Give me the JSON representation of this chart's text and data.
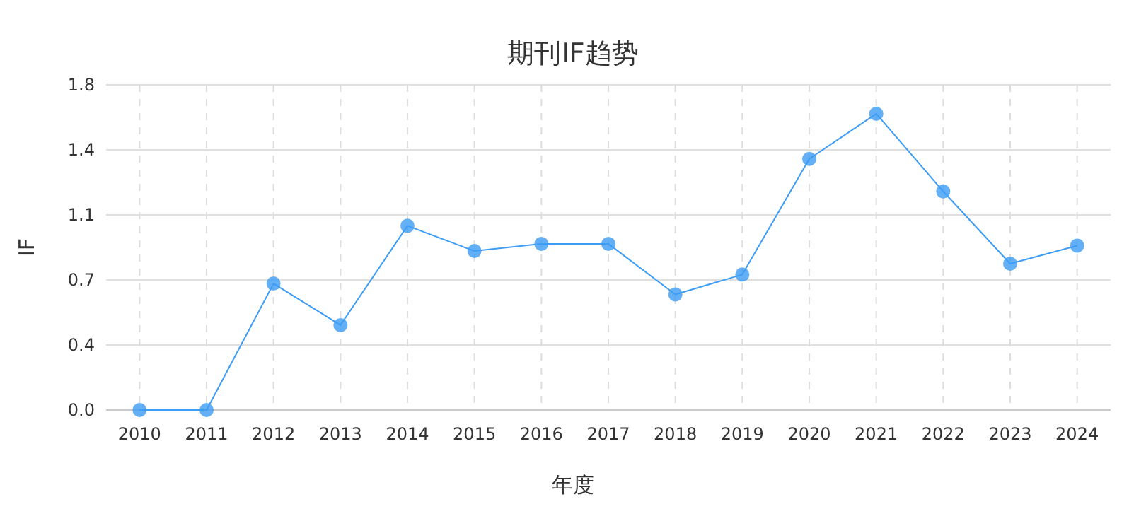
{
  "chart_data": {
    "type": "line",
    "title": "期刊IF趋势",
    "xlabel": "年度",
    "ylabel": "IF",
    "categories": [
      "2010",
      "2011",
      "2012",
      "2013",
      "2014",
      "2015",
      "2016",
      "2017",
      "2018",
      "2019",
      "2020",
      "2021",
      "2022",
      "2023",
      "2024"
    ],
    "series": [
      {
        "color": "#3d9cf5",
        "values": [
          0,
          0,
          0.7,
          0.47,
          1.02,
          0.88,
          0.92,
          0.92,
          0.64,
          0.75,
          1.39,
          1.64,
          1.21,
          0.81,
          0.91
        ]
      }
    ],
    "ylim": [
      0,
      1.8
    ],
    "yticks": [
      {
        "value": 0,
        "label": "0.0"
      },
      {
        "value": 0.36,
        "label": "0.4"
      },
      {
        "value": 0.72,
        "label": "0.7"
      },
      {
        "value": 1.08,
        "label": "1.1"
      },
      {
        "value": 1.44,
        "label": "1.4"
      },
      {
        "value": 1.8,
        "label": "1.8"
      }
    ],
    "grid": true,
    "marker": "circle",
    "line_style": "solid"
  }
}
